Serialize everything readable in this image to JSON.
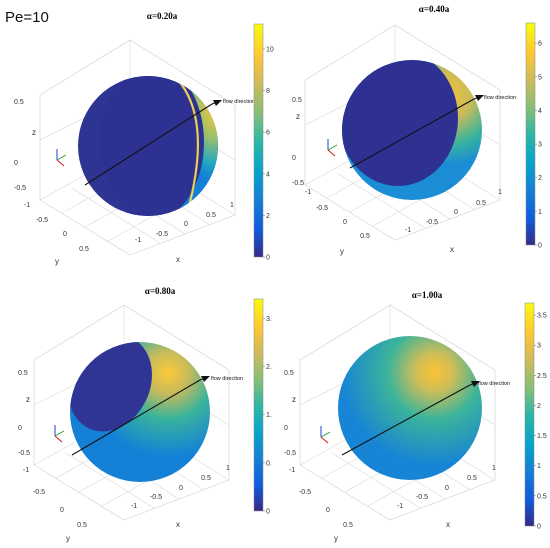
{
  "figure": {
    "label": "Pe=10",
    "flow_label": "flow direction",
    "colormap": [
      "#352a87",
      "#0f5cdd",
      "#1481d6",
      "#06a4ca",
      "#2eb7a4",
      "#87bf77",
      "#d1bb59",
      "#fec832",
      "#f9fb0e"
    ]
  },
  "chart_data": [
    {
      "type": "surface",
      "title": "α=0.20a",
      "xlabel": "x",
      "ylabel": "y",
      "zlabel": "z",
      "xticks": [
        "-1",
        "-0.5",
        "0",
        "0.5",
        "1"
      ],
      "yticks": [
        "-1",
        "-0.5",
        "0",
        "0.5"
      ],
      "zticks": [
        "0.5",
        "0",
        "-0.5"
      ],
      "colorbar_ticks": [
        "0",
        "2",
        "4",
        "6",
        "8",
        "10"
      ],
      "clim": [
        0,
        11.2
      ],
      "cap_fraction": 0.33,
      "max_value": 11,
      "band_fraction": 0.14
    },
    {
      "type": "surface",
      "title": "α=0.40a",
      "xlabel": "x",
      "ylabel": "y",
      "zlabel": "z",
      "xticks": [
        "-1",
        "-0.5",
        "0",
        "0.5",
        "1"
      ],
      "yticks": [
        "-1",
        "-0.5",
        "0",
        "0.5"
      ],
      "zticks": [
        "0.5",
        "0",
        "-0.5"
      ],
      "colorbar_ticks": [
        "0",
        "1",
        "2",
        "3",
        "4",
        "5",
        "6"
      ],
      "clim": [
        0,
        6.6
      ],
      "cap_fraction": 0.45,
      "max_value": 6.3,
      "band_fraction": 0.22
    },
    {
      "type": "surface",
      "title": "α=0.80a",
      "xlabel": "x",
      "ylabel": "y",
      "zlabel": "z",
      "xticks": [
        "-1",
        "-0.5",
        "0",
        "0.5",
        "1"
      ],
      "yticks": [
        "-1",
        "-0.5",
        "0",
        "0.5"
      ],
      "zticks": [
        "0.5",
        "0",
        "-0.5"
      ],
      "colorbar_ticks": [
        "0",
        "0.",
        "1.",
        "2.",
        "3."
      ],
      "clim": [
        0,
        3.7
      ],
      "cap_fraction": 0.6,
      "max_value": 3.6,
      "band_fraction": 0.45
    },
    {
      "type": "surface",
      "title": "α=1.00a",
      "xlabel": "x",
      "ylabel": "y",
      "zlabel": "z",
      "xticks": [
        "-1",
        "-0.5",
        "0",
        "0.5",
        "1"
      ],
      "yticks": [
        "-1",
        "-0.5",
        "0",
        "0.5"
      ],
      "zticks": [
        "0.5",
        "0",
        "-0.5"
      ],
      "colorbar_ticks": [
        "0",
        "0.5",
        "1",
        "1.5",
        "2",
        "2.5",
        "3",
        "3.5"
      ],
      "clim": [
        0,
        3.7
      ],
      "cap_fraction": 0.0,
      "max_value": 3.6,
      "band_fraction": 0.55
    }
  ]
}
